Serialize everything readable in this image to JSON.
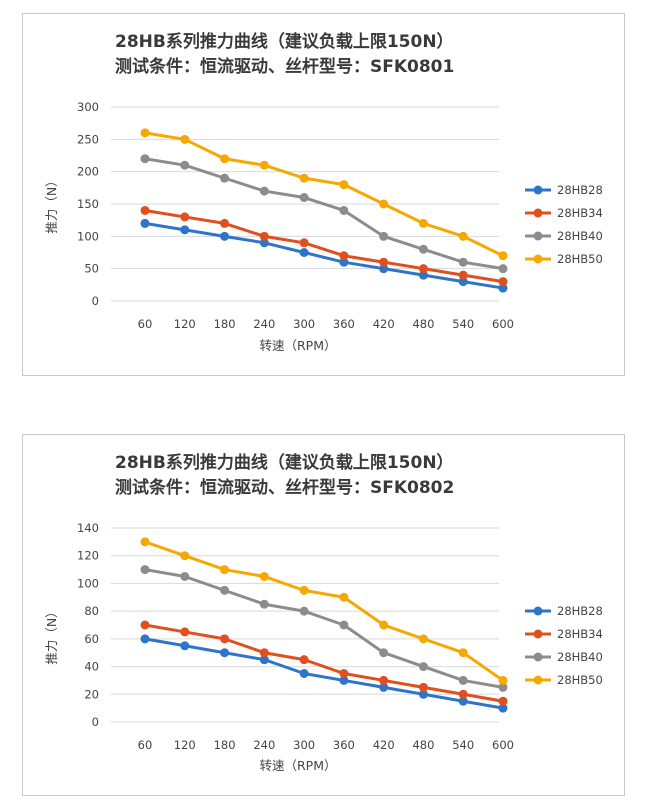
{
  "chart_data": [
    {
      "type": "line",
      "title": "28HB系列推力曲线（建议负载上限150N）",
      "subtitle": "测试条件：恒流驱动、丝杆型号：SFK0801",
      "xlabel": "转速（RPM）",
      "ylabel": "推力（N）",
      "categories": [
        "60",
        "120",
        "180",
        "240",
        "300",
        "360",
        "420",
        "480",
        "540",
        "600"
      ],
      "ylim": [
        0,
        300
      ],
      "yticks": [
        "0",
        "50",
        "100",
        "150",
        "200",
        "250",
        "300"
      ],
      "grid": true,
      "legend": "right",
      "series": [
        {
          "name": "28HB28",
          "color": "#2e75c8",
          "values": [
            120,
            110,
            100,
            90,
            75,
            60,
            50,
            40,
            30,
            20
          ]
        },
        {
          "name": "28HB34",
          "color": "#e0501e",
          "values": [
            140,
            130,
            120,
            100,
            90,
            70,
            60,
            50,
            40,
            30
          ]
        },
        {
          "name": "28HB40",
          "color": "#8c8c8c",
          "values": [
            220,
            210,
            190,
            170,
            160,
            140,
            100,
            80,
            60,
            50
          ]
        },
        {
          "name": "28HB50",
          "color": "#f5a800",
          "values": [
            260,
            250,
            220,
            210,
            190,
            180,
            150,
            120,
            100,
            70
          ]
        }
      ]
    },
    {
      "type": "line",
      "title": "28HB系列推力曲线（建议负载上限150N）",
      "subtitle": "测试条件：恒流驱动、丝杆型号：SFK0802",
      "xlabel": "转速（RPM）",
      "ylabel": "推力（N）",
      "categories": [
        "60",
        "120",
        "180",
        "240",
        "300",
        "360",
        "420",
        "480",
        "540",
        "600"
      ],
      "ylim": [
        0,
        140
      ],
      "yticks": [
        "0",
        "20",
        "40",
        "60",
        "80",
        "100",
        "120",
        "140"
      ],
      "grid": true,
      "legend": "right",
      "series": [
        {
          "name": "28HB28",
          "color": "#2e75c8",
          "values": [
            60,
            55,
            50,
            45,
            35,
            30,
            25,
            20,
            15,
            10
          ]
        },
        {
          "name": "28HB34",
          "color": "#e0501e",
          "values": [
            70,
            65,
            60,
            50,
            45,
            35,
            30,
            25,
            20,
            15
          ]
        },
        {
          "name": "28HB40",
          "color": "#8c8c8c",
          "values": [
            110,
            105,
            95,
            85,
            80,
            70,
            50,
            40,
            30,
            25
          ]
        },
        {
          "name": "28HB50",
          "color": "#f5a800",
          "values": [
            130,
            120,
            110,
            105,
            95,
            90,
            70,
            60,
            50,
            30
          ]
        }
      ]
    }
  ]
}
